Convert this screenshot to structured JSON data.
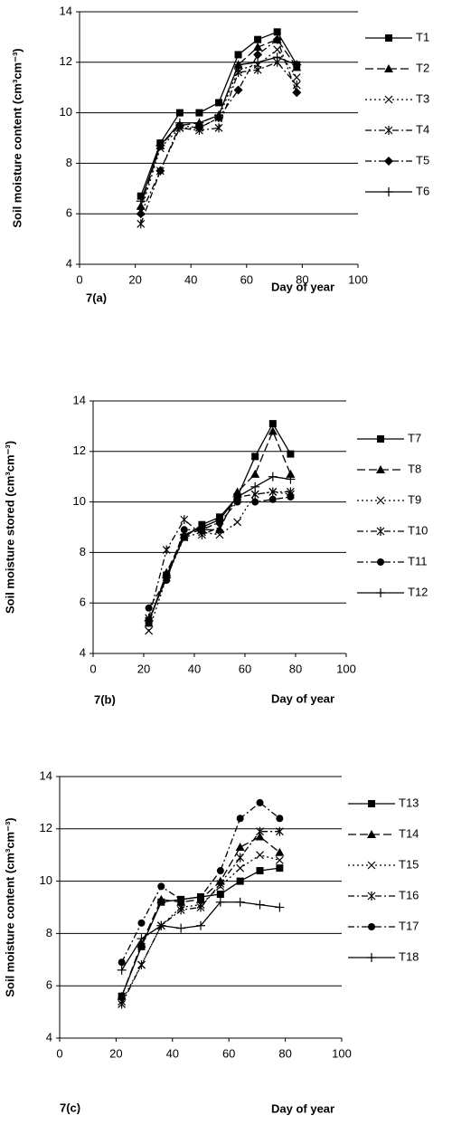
{
  "chart_data": [
    {
      "type": "line",
      "ylabel": "Soil moisture content (cm³cm⁻³)",
      "xlabel": "Day of year",
      "panel_label": "7(a)",
      "x": [
        22,
        29,
        36,
        43,
        50,
        57,
        64,
        71,
        78
      ],
      "xlim": [
        0,
        100
      ],
      "xticks": [
        0,
        20,
        40,
        60,
        80,
        100
      ],
      "ylim": [
        4,
        14
      ],
      "yticks": [
        4,
        6,
        8,
        10,
        12,
        14
      ],
      "grid": true,
      "legend": "right",
      "series": [
        {
          "name": "T1",
          "color": "#000000",
          "marker": "square",
          "dash": "solid",
          "values": [
            6.7,
            8.8,
            10.0,
            10.0,
            10.4,
            12.3,
            12.9,
            13.2,
            11.9
          ]
        },
        {
          "name": "T2",
          "color": "#000000",
          "marker": "triangle",
          "dash": "dashed",
          "values": [
            6.3,
            8.7,
            9.5,
            9.6,
            9.9,
            11.9,
            12.6,
            12.9,
            11.8
          ]
        },
        {
          "name": "T3",
          "color": "#000000",
          "marker": "x",
          "dash": "dotted",
          "values": [
            6.1,
            8.6,
            9.4,
            9.4,
            9.8,
            11.7,
            11.9,
            12.5,
            11.4
          ]
        },
        {
          "name": "T4",
          "color": "#000000",
          "marker": "asterisk",
          "dash": "dashdot",
          "values": [
            5.6,
            7.7,
            9.4,
            9.3,
            9.4,
            11.6,
            11.7,
            12.0,
            11.1
          ]
        },
        {
          "name": "T5",
          "color": "#000000",
          "marker": "diamond",
          "dash": "dashdot",
          "values": [
            6.0,
            7.7,
            9.5,
            9.4,
            9.8,
            10.9,
            12.3,
            12.9,
            10.8
          ]
        },
        {
          "name": "T6",
          "color": "#000000",
          "marker": "plus",
          "dash": "solid",
          "values": [
            6.5,
            8.7,
            9.6,
            9.6,
            9.9,
            11.9,
            12.0,
            12.2,
            11.9
          ]
        }
      ]
    },
    {
      "type": "line",
      "ylabel": "Soil moisture stored (cm³cm⁻³)",
      "xlabel": "Day of year",
      "panel_label": "7(b)",
      "x": [
        22,
        29,
        36,
        43,
        50,
        57,
        64,
        71,
        78
      ],
      "xlim": [
        0,
        100
      ],
      "xticks": [
        0,
        20,
        40,
        60,
        80,
        100
      ],
      "ylim": [
        4,
        14
      ],
      "yticks": [
        4,
        6,
        8,
        10,
        12,
        14
      ],
      "grid": true,
      "legend": "right",
      "series": [
        {
          "name": "T7",
          "color": "#000000",
          "marker": "square",
          "dash": "solid",
          "values": [
            5.3,
            7.1,
            8.6,
            9.1,
            9.4,
            10.2,
            11.8,
            13.1,
            11.9
          ]
        },
        {
          "name": "T8",
          "color": "#000000",
          "marker": "triangle",
          "dash": "dashed",
          "values": [
            5.2,
            7.2,
            8.7,
            8.9,
            8.9,
            10.4,
            11.1,
            12.8,
            11.1
          ]
        },
        {
          "name": "T9",
          "color": "#000000",
          "marker": "x",
          "dash": "dotted",
          "values": [
            4.9,
            7.0,
            8.6,
            8.8,
            8.7,
            9.2,
            10.3,
            10.4,
            10.3
          ]
        },
        {
          "name": "T10",
          "color": "#000000",
          "marker": "asterisk",
          "dash": "dashdot",
          "values": [
            5.4,
            8.1,
            9.3,
            8.7,
            9.0,
            10.2,
            10.3,
            10.4,
            10.4
          ]
        },
        {
          "name": "T11",
          "color": "#000000",
          "marker": "circle",
          "dash": "dashdot",
          "values": [
            5.8,
            6.9,
            8.9,
            8.9,
            9.2,
            10.0,
            10.0,
            10.1,
            10.2
          ]
        },
        {
          "name": "T12",
          "color": "#000000",
          "marker": "plus",
          "dash": "solid",
          "values": [
            5.3,
            7.0,
            8.7,
            9.0,
            9.3,
            10.2,
            10.6,
            11.0,
            10.9
          ]
        }
      ]
    },
    {
      "type": "line",
      "ylabel": "Soil moisture content (cm³cm⁻³)",
      "xlabel": "Day of year",
      "panel_label": "7(c)",
      "x": [
        22,
        29,
        36,
        43,
        50,
        57,
        64,
        71,
        78
      ],
      "xlim": [
        0,
        100
      ],
      "xticks": [
        0,
        20,
        40,
        60,
        80,
        100
      ],
      "ylim": [
        4,
        14
      ],
      "yticks": [
        4,
        6,
        8,
        10,
        12,
        14
      ],
      "grid": true,
      "legend": "right",
      "series": [
        {
          "name": "T13",
          "color": "#000000",
          "marker": "square",
          "dash": "solid",
          "values": [
            5.6,
            7.5,
            9.2,
            9.3,
            9.4,
            9.5,
            10.0,
            10.4,
            10.5
          ]
        },
        {
          "name": "T14",
          "color": "#000000",
          "marker": "triangle",
          "dash": "dashed",
          "values": [
            5.6,
            7.6,
            9.3,
            9.2,
            9.3,
            10.0,
            11.3,
            11.7,
            11.1
          ]
        },
        {
          "name": "T15",
          "color": "#000000",
          "marker": "x",
          "dash": "dotted",
          "values": [
            5.4,
            6.8,
            8.3,
            9.0,
            9.1,
            9.8,
            10.5,
            11.0,
            10.8
          ]
        },
        {
          "name": "T16",
          "color": "#000000",
          "marker": "asterisk",
          "dash": "dashdot",
          "values": [
            5.3,
            6.8,
            8.3,
            8.9,
            9.0,
            9.9,
            10.9,
            11.9,
            11.9
          ]
        },
        {
          "name": "T17",
          "color": "#000000",
          "marker": "circle",
          "dash": "dashdot",
          "values": [
            6.9,
            8.4,
            9.8,
            9.3,
            9.4,
            10.4,
            12.4,
            13.0,
            12.4
          ]
        },
        {
          "name": "T18",
          "color": "#000000",
          "marker": "plus",
          "dash": "solid",
          "values": [
            6.6,
            7.8,
            8.3,
            8.2,
            8.3,
            9.2,
            9.2,
            9.1,
            9.0
          ]
        }
      ]
    }
  ]
}
